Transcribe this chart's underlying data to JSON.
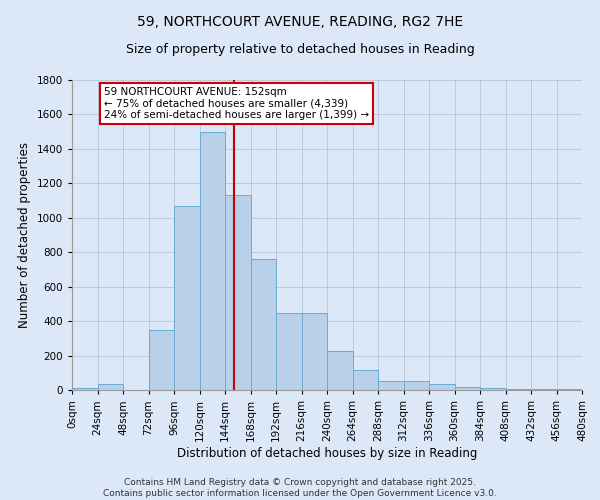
{
  "title": "59, NORTHCOURT AVENUE, READING, RG2 7HE",
  "subtitle": "Size of property relative to detached houses in Reading",
  "xlabel": "Distribution of detached houses by size in Reading",
  "ylabel": "Number of detached properties",
  "bar_values": [
    10,
    35,
    0,
    350,
    1070,
    1500,
    1130,
    760,
    450,
    445,
    225,
    115,
    55,
    50,
    35,
    20,
    12,
    8,
    5,
    3,
    2
  ],
  "bin_edges": [
    0,
    24,
    48,
    72,
    96,
    120,
    144,
    168,
    192,
    216,
    240,
    264,
    288,
    312,
    336,
    360,
    384,
    408,
    432,
    456,
    480
  ],
  "bin_labels": [
    "0sqm",
    "24sqm",
    "48sqm",
    "72sqm",
    "96sqm",
    "120sqm",
    "144sqm",
    "168sqm",
    "192sqm",
    "216sqm",
    "240sqm",
    "264sqm",
    "288sqm",
    "312sqm",
    "336sqm",
    "360sqm",
    "384sqm",
    "408sqm",
    "432sqm",
    "456sqm",
    "480sqm"
  ],
  "bar_color": "#b8d0ea",
  "bar_edge_color": "#6aabd2",
  "vline_x": 152,
  "vline_color": "#cc0000",
  "annotation_text": "59 NORTHCOURT AVENUE: 152sqm\n← 75% of detached houses are smaller (4,339)\n24% of semi-detached houses are larger (1,399) →",
  "annotation_box_color": "#ffffff",
  "annotation_box_edge_color": "#cc0000",
  "bg_color": "#dce8f8",
  "plot_bg_color": "#dce8f8",
  "ylim": [
    0,
    1800
  ],
  "yticks": [
    0,
    200,
    400,
    600,
    800,
    1000,
    1200,
    1400,
    1600,
    1800
  ],
  "footer": "Contains HM Land Registry data © Crown copyright and database right 2025.\nContains public sector information licensed under the Open Government Licence v3.0.",
  "title_fontsize": 10,
  "subtitle_fontsize": 9,
  "axis_label_fontsize": 8.5,
  "tick_fontsize": 7.5,
  "annotation_fontsize": 7.5,
  "footer_fontsize": 6.5
}
